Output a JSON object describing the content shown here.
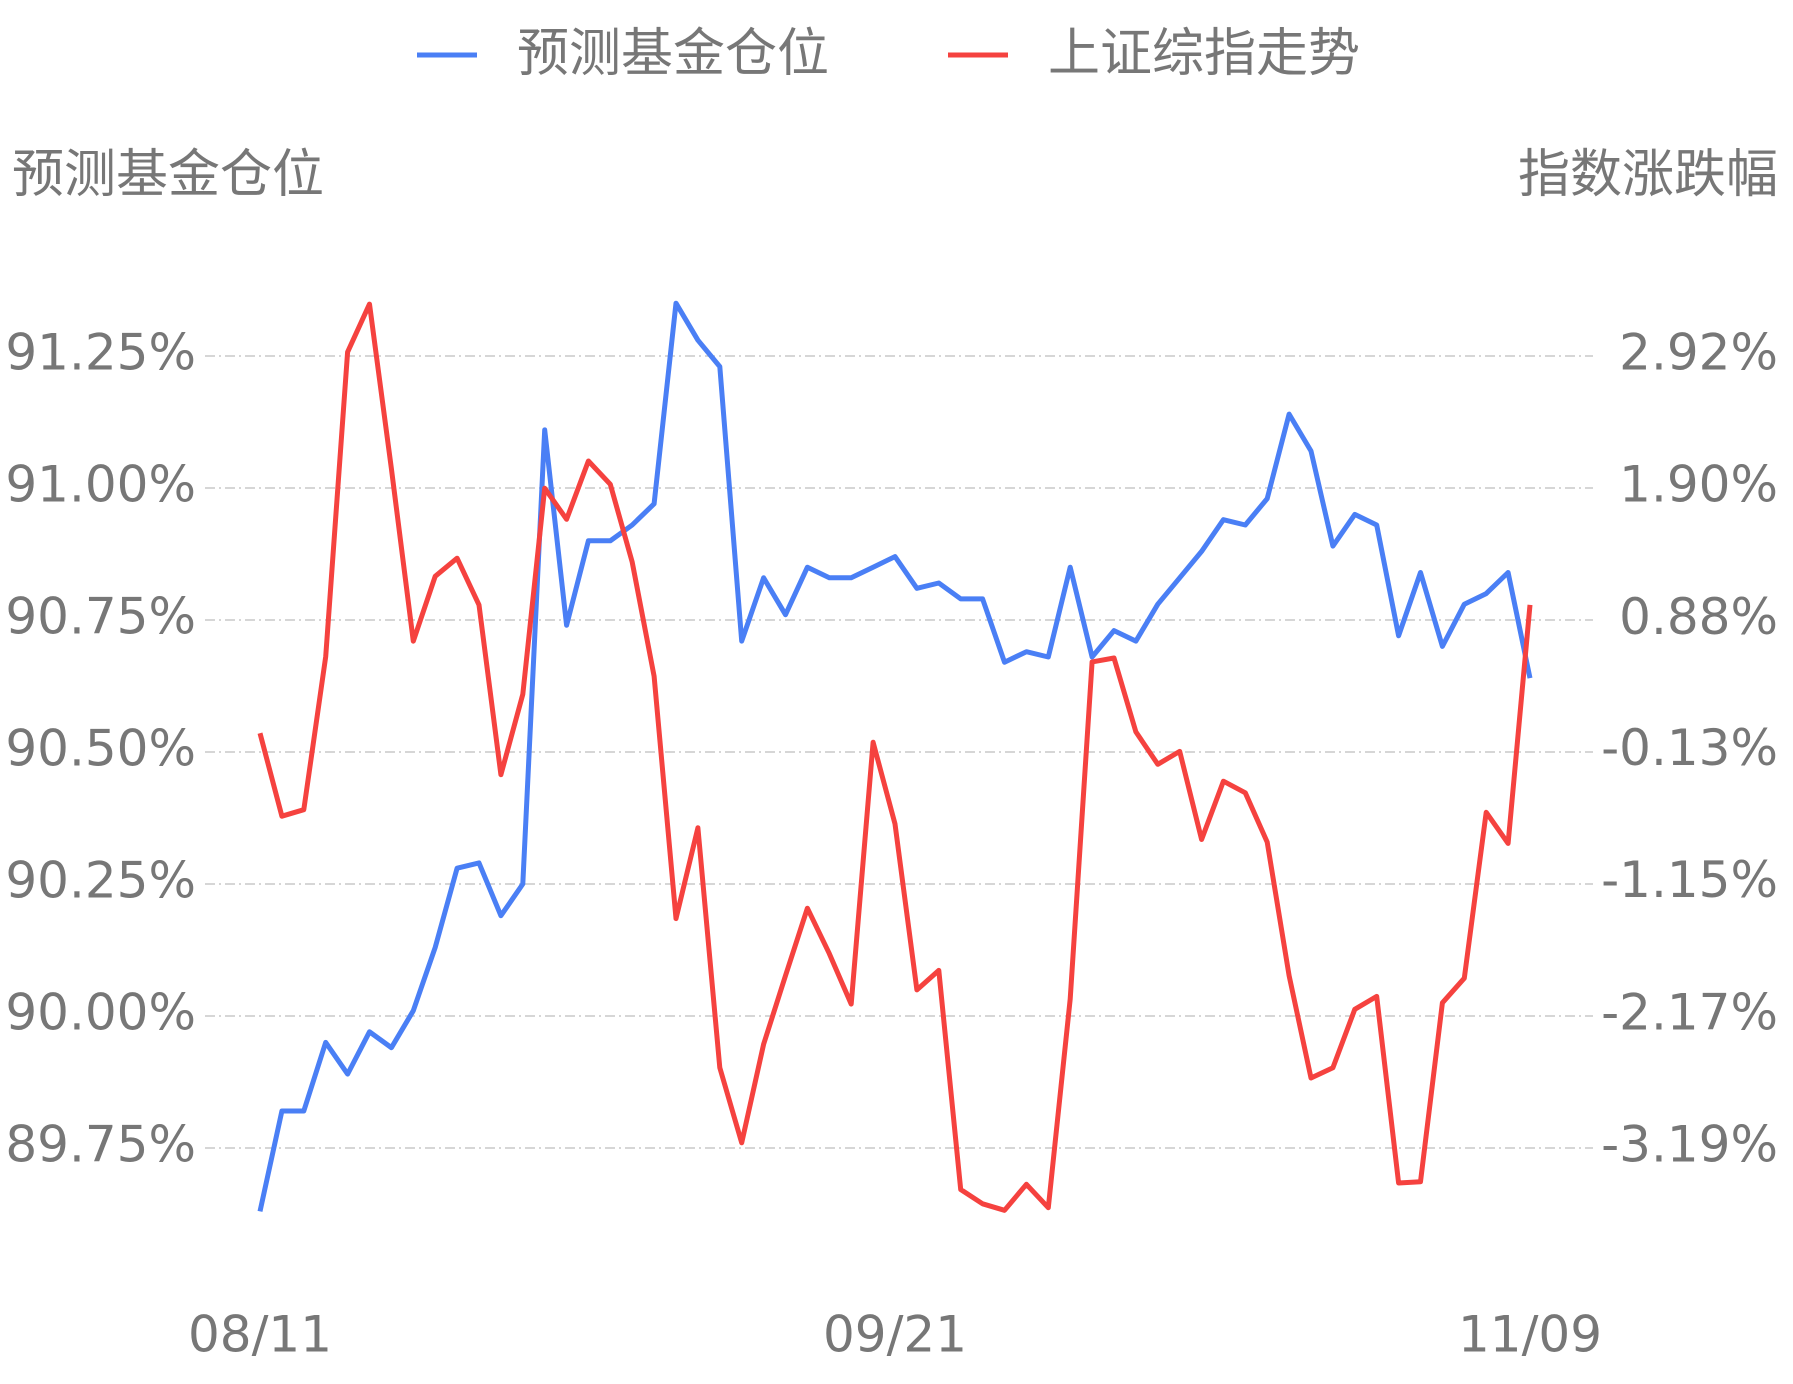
{
  "chart_data": {
    "type": "line",
    "y_label": "预测基金仓位",
    "y2_label": "指数涨跌幅",
    "categories": [
      "08/11",
      null,
      null,
      null,
      null,
      null,
      null,
      null,
      null,
      null,
      null,
      null,
      null,
      null,
      null,
      null,
      null,
      null,
      null,
      null,
      null,
      null,
      null,
      null,
      null,
      null,
      null,
      null,
      null,
      "09/21",
      null,
      null,
      null,
      null,
      null,
      null,
      null,
      null,
      null,
      null,
      null,
      null,
      null,
      null,
      null,
      null,
      null,
      null,
      null,
      null,
      null,
      null,
      null,
      null,
      null,
      null,
      null,
      null,
      "11/09"
    ],
    "series": [
      {
        "name": "预测基金仓位",
        "color": "#4a7ff5",
        "values": [
          89.63,
          89.82,
          89.82,
          89.95,
          89.89,
          89.97,
          89.94,
          90.01,
          90.13,
          90.28,
          90.29,
          90.19,
          90.25,
          91.11,
          90.74,
          90.9,
          90.9,
          90.93,
          90.97,
          91.35,
          91.28,
          91.23,
          90.71,
          90.83,
          90.76,
          90.85,
          90.83,
          90.83,
          90.85,
          90.87,
          90.81,
          90.82,
          90.79,
          90.79,
          90.67,
          90.69,
          90.68,
          90.85,
          90.68,
          90.73,
          90.71,
          90.78,
          90.83,
          90.88,
          90.94,
          90.93,
          90.98,
          91.14,
          91.07,
          90.89,
          90.95,
          90.93,
          90.72,
          90.84,
          90.7,
          90.78,
          90.8,
          90.84,
          90.64
        ]
      },
      {
        "name": "上证综指走势",
        "color": "#f5423f",
        "axis": "y2",
        "values": [
          0.01,
          -0.63,
          -0.58,
          0.6,
          2.95,
          3.32,
          2.05,
          0.72,
          1.22,
          1.36,
          1.0,
          -0.31,
          0.31,
          1.9,
          1.66,
          2.11,
          1.93,
          1.33,
          0.45,
          -1.42,
          -0.72,
          -2.57,
          -3.15,
          -2.39,
          -1.86,
          -1.34,
          -1.69,
          -2.08,
          -0.06,
          -0.69,
          -1.97,
          -1.82,
          -3.51,
          -3.62,
          -3.67,
          -3.47,
          -3.65,
          -2.04,
          0.56,
          0.59,
          0.02,
          -0.23,
          -0.13,
          -0.81,
          -0.36,
          -0.45,
          -0.83,
          -1.86,
          -2.65,
          -2.57,
          -2.12,
          -2.02,
          -3.46,
          -3.45,
          -2.07,
          -1.88,
          -0.6,
          -0.84,
          1.0
        ]
      }
    ],
    "ylim": [
      89.5,
      91.5
    ],
    "yticks": [
      {
        "value": 91.25,
        "label": "91.25%"
      },
      {
        "value": 91.0,
        "label": "91.00%"
      },
      {
        "value": 90.75,
        "label": "90.75%"
      },
      {
        "value": 90.5,
        "label": "90.50%"
      },
      {
        "value": 90.25,
        "label": "90.25%"
      },
      {
        "value": 90.0,
        "label": "90.00%"
      },
      {
        "value": 89.75,
        "label": "89.75%"
      }
    ],
    "y2lim": [
      -4.208,
      3.938
    ],
    "y2ticks": [
      {
        "value": 2.92,
        "label": "2.92%"
      },
      {
        "value": 1.9,
        "label": "1.90%"
      },
      {
        "value": 0.88,
        "label": "0.88%"
      },
      {
        "value": -0.13,
        "label": "-0.13%"
      },
      {
        "value": -1.15,
        "label": "-1.15%"
      },
      {
        "value": -2.17,
        "label": "-2.17%"
      },
      {
        "value": -3.19,
        "label": "-3.19%"
      }
    ],
    "grid": true,
    "legend": "top"
  }
}
